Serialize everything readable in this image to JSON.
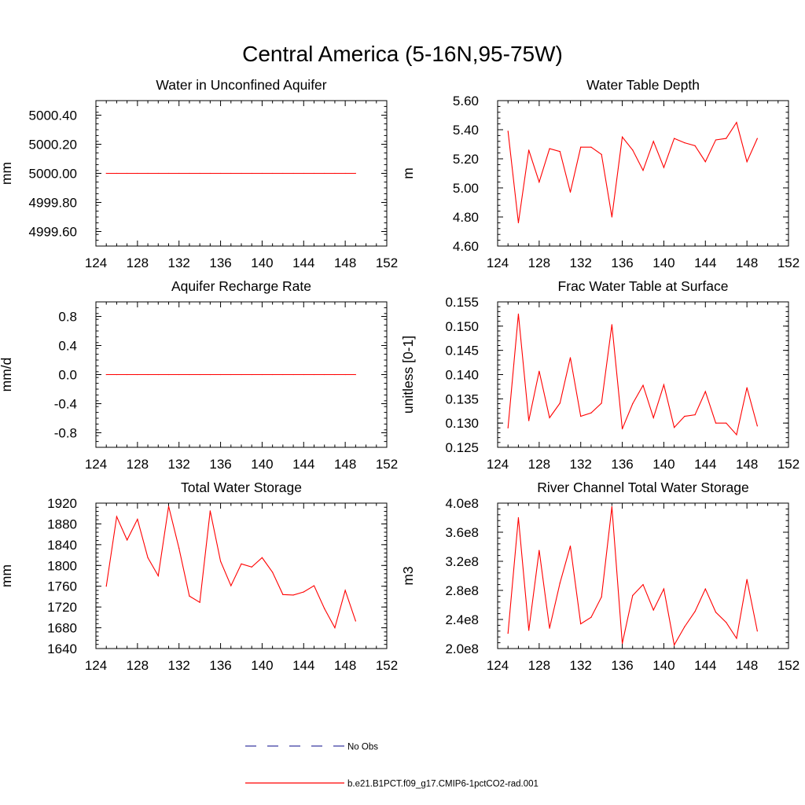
{
  "title": "Central America (5-16N,95-75W)",
  "legend": {
    "obs_label": "No Obs",
    "model_label": "b.e21.B1PCT.f09_g17.CMIP6-1pctCO2-rad.001",
    "obs_color": "#3a3aa0",
    "model_color": "#ff0000"
  },
  "chart_data": [
    {
      "type": "line",
      "title": "Water in Unconfined Aquifer",
      "xlabel": "",
      "ylabel": "mm",
      "xlim": [
        124,
        152
      ],
      "ylim": [
        4999.5,
        5000.5
      ],
      "xticks": [
        124,
        128,
        132,
        136,
        140,
        144,
        148,
        152
      ],
      "yticks": [
        4999.6,
        4999.8,
        5000.0,
        5000.2,
        5000.4
      ],
      "ytick_labels": [
        "4999.60",
        "4999.80",
        "5000.00",
        "5000.20",
        "5000.40"
      ],
      "series": [
        {
          "color": "#ff0000",
          "x": [
            125,
            126,
            127,
            128,
            129,
            130,
            131,
            132,
            133,
            134,
            135,
            136,
            137,
            138,
            139,
            140,
            141,
            142,
            143,
            144,
            145,
            146,
            147,
            148,
            149
          ],
          "values": [
            5000,
            5000,
            5000,
            5000,
            5000,
            5000,
            5000,
            5000,
            5000,
            5000,
            5000,
            5000,
            5000,
            5000,
            5000,
            5000,
            5000,
            5000,
            5000,
            5000,
            5000,
            5000,
            5000,
            5000,
            5000
          ]
        }
      ]
    },
    {
      "type": "line",
      "title": "Water Table Depth",
      "xlabel": "",
      "ylabel": "m",
      "xlim": [
        124,
        152
      ],
      "ylim": [
        4.6,
        5.6
      ],
      "xticks": [
        124,
        128,
        132,
        136,
        140,
        144,
        148,
        152
      ],
      "yticks": [
        4.6,
        4.8,
        5.0,
        5.2,
        5.4,
        5.6
      ],
      "ytick_labels": [
        "4.60",
        "4.80",
        "5.00",
        "5.20",
        "5.40",
        "5.60"
      ],
      "series": [
        {
          "color": "#ff0000",
          "x": [
            125,
            126,
            127,
            128,
            129,
            130,
            131,
            132,
            133,
            134,
            135,
            136,
            137,
            138,
            139,
            140,
            141,
            142,
            143,
            144,
            145,
            146,
            147,
            148,
            149
          ],
          "values": [
            5.39,
            4.76,
            5.26,
            5.04,
            5.27,
            5.25,
            4.97,
            5.28,
            5.28,
            5.23,
            4.8,
            5.35,
            5.26,
            5.12,
            5.32,
            5.14,
            5.34,
            5.31,
            5.29,
            5.18,
            5.33,
            5.34,
            5.45,
            5.18,
            5.34
          ]
        }
      ]
    },
    {
      "type": "line",
      "title": "Aquifer Recharge Rate",
      "xlabel": "",
      "ylabel": "mm/d",
      "xlim": [
        124,
        152
      ],
      "ylim": [
        -1.0,
        1.0
      ],
      "xticks": [
        124,
        128,
        132,
        136,
        140,
        144,
        148,
        152
      ],
      "yticks": [
        -0.8,
        -0.4,
        0.0,
        0.4,
        0.8
      ],
      "ytick_labels": [
        "-0.8",
        "-0.4",
        "0.0",
        "0.4",
        "0.8"
      ],
      "series": [
        {
          "color": "#ff0000",
          "x": [
            125,
            126,
            127,
            128,
            129,
            130,
            131,
            132,
            133,
            134,
            135,
            136,
            137,
            138,
            139,
            140,
            141,
            142,
            143,
            144,
            145,
            146,
            147,
            148,
            149
          ],
          "values": [
            0,
            0,
            0,
            0,
            0,
            0,
            0,
            0,
            0,
            0,
            0,
            0,
            0,
            0,
            0,
            0,
            0,
            0,
            0,
            0,
            0,
            0,
            0,
            0,
            0
          ]
        }
      ]
    },
    {
      "type": "line",
      "title": "Frac Water Table at Surface",
      "xlabel": "",
      "ylabel": "unitless [0-1]",
      "xlim": [
        124,
        152
      ],
      "ylim": [
        0.125,
        0.155
      ],
      "xticks": [
        124,
        128,
        132,
        136,
        140,
        144,
        148,
        152
      ],
      "yticks": [
        0.125,
        0.13,
        0.135,
        0.14,
        0.145,
        0.15,
        0.155
      ],
      "ytick_labels": [
        "0.125",
        "0.130",
        "0.135",
        "0.140",
        "0.145",
        "0.150",
        "0.155"
      ],
      "series": [
        {
          "color": "#ff0000",
          "x": [
            125,
            126,
            127,
            128,
            129,
            130,
            131,
            132,
            133,
            134,
            135,
            136,
            137,
            138,
            139,
            140,
            141,
            142,
            143,
            144,
            145,
            146,
            147,
            148,
            149
          ],
          "values": [
            0.129,
            0.1525,
            0.1305,
            0.1407,
            0.1311,
            0.1341,
            0.1435,
            0.1314,
            0.1321,
            0.1341,
            0.1503,
            0.1288,
            0.134,
            0.1378,
            0.1311,
            0.1379,
            0.1291,
            0.1314,
            0.1317,
            0.1365,
            0.13,
            0.13,
            0.1276,
            0.1373,
            0.1294
          ]
        }
      ]
    },
    {
      "type": "line",
      "title": "Total Water Storage",
      "xlabel": "",
      "ylabel": "mm",
      "xlim": [
        124,
        152
      ],
      "ylim": [
        1640,
        1920
      ],
      "xticks": [
        124,
        128,
        132,
        136,
        140,
        144,
        148,
        152
      ],
      "yticks": [
        1640,
        1680,
        1720,
        1760,
        1800,
        1840,
        1880,
        1920
      ],
      "ytick_labels": [
        "1640",
        "1680",
        "1720",
        "1760",
        "1800",
        "1840",
        "1880",
        "1920"
      ],
      "series": [
        {
          "color": "#ff0000",
          "x": [
            125,
            126,
            127,
            128,
            129,
            130,
            131,
            132,
            133,
            134,
            135,
            136,
            137,
            138,
            139,
            140,
            141,
            142,
            143,
            144,
            145,
            146,
            147,
            148,
            149
          ],
          "values": [
            1760,
            1894,
            1849,
            1889,
            1815,
            1780,
            1914,
            1833,
            1741,
            1729,
            1905,
            1808,
            1761,
            1803,
            1797,
            1815,
            1787,
            1744,
            1743,
            1749,
            1761,
            1717,
            1680,
            1752,
            1693
          ]
        }
      ]
    },
    {
      "type": "line",
      "title": "River Channel Total Water Storage",
      "xlabel": "",
      "ylabel": "m3",
      "xlim": [
        124,
        152
      ],
      "ylim": [
        200000000,
        400000000
      ],
      "xticks": [
        124,
        128,
        132,
        136,
        140,
        144,
        148,
        152
      ],
      "yticks": [
        200000000,
        240000000,
        280000000,
        320000000,
        360000000,
        400000000
      ],
      "ytick_labels": [
        "2.0e8",
        "2.4e8",
        "2.8e8",
        "3.2e8",
        "3.6e8",
        "4.0e8"
      ],
      "series": [
        {
          "color": "#ff0000",
          "x": [
            125,
            126,
            127,
            128,
            129,
            130,
            131,
            132,
            133,
            134,
            135,
            136,
            137,
            138,
            139,
            140,
            141,
            142,
            143,
            144,
            145,
            146,
            147,
            148,
            149
          ],
          "values": [
            221000000,
            380000000,
            225000000,
            335000000,
            228000000,
            290000000,
            341000000,
            234000000,
            243000000,
            271000000,
            395000000,
            207000000,
            273000000,
            288000000,
            253000000,
            282000000,
            205000000,
            230000000,
            251000000,
            282000000,
            250000000,
            236000000,
            214000000,
            295000000,
            224000000
          ]
        }
      ]
    }
  ]
}
